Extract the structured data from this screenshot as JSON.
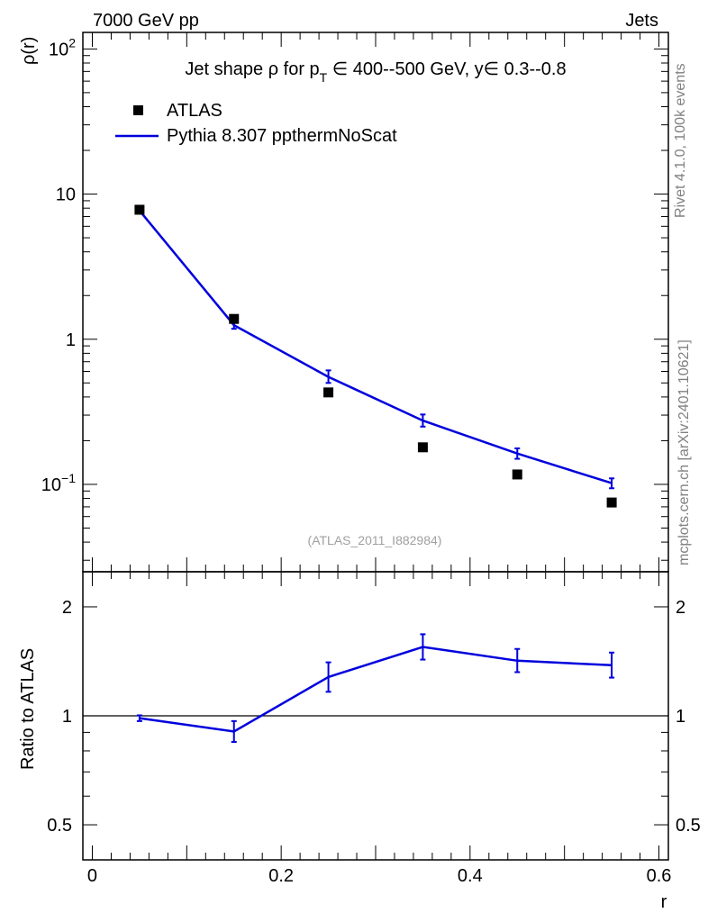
{
  "header": {
    "left": "7000 GeV pp",
    "right": "Jets"
  },
  "side": {
    "rivet": "Rivet 4.1.0,  100k events",
    "mcplots": "mcplots.cern.ch [arXiv:2401.10621]"
  },
  "colors": {
    "mc": "#0000dd",
    "data": "#000000",
    "watermark": "#a0a0a0"
  },
  "chart_data": [
    {
      "type": "scatter",
      "panel": "main",
      "title": {
        "pre": "Jet shape ",
        "rho": "ρ",
        "mid": " for p",
        "sub": "T",
        "post": " ∈ 400--500 GeV, y∈ 0.3--0.8"
      },
      "ylabel": "ρ(r)",
      "yscale": "log",
      "ylim": [
        0.025,
        130
      ],
      "xlim": [
        -0.01,
        0.61
      ],
      "ytick_labels": [
        {
          "value": 100,
          "base": "10",
          "exp": "2"
        },
        {
          "value": 10,
          "base": "10",
          "exp": ""
        },
        {
          "value": 1,
          "base": "1",
          "exp": ""
        },
        {
          "value": 0.1,
          "base": "10",
          "exp": "−1"
        }
      ],
      "watermark": "(ATLAS_2011_I882984)",
      "legend": {
        "position": "top-left",
        "entries": [
          {
            "name": "ATLAS",
            "marker": "square"
          },
          {
            "name": "Pythia 8.307 ppthermNoScat",
            "marker": "line"
          }
        ]
      },
      "series": [
        {
          "name": "ATLAS",
          "x": [
            0.05,
            0.15,
            0.25,
            0.35,
            0.45,
            0.55
          ],
          "y": [
            7.8,
            1.38,
            0.43,
            0.18,
            0.117,
            0.075
          ]
        },
        {
          "name": "Pythia 8.307 ppthermNoScat",
          "x": [
            0.05,
            0.15,
            0.25,
            0.35,
            0.45,
            0.55
          ],
          "y": [
            7.7,
            1.25,
            0.55,
            0.275,
            0.163,
            0.102
          ],
          "yerr_lo": [
            0.1,
            0.07,
            0.05,
            0.025,
            0.013,
            0.008
          ],
          "yerr_hi": [
            0.1,
            0.07,
            0.06,
            0.028,
            0.014,
            0.008
          ]
        }
      ]
    },
    {
      "type": "line",
      "panel": "ratio",
      "ylabel": "Ratio to ATLAS",
      "xlabel": "r",
      "yscale": "log",
      "ylim": [
        0.4,
        2.5
      ],
      "xlim": [
        -0.01,
        0.61
      ],
      "xticks": [
        0,
        0.2,
        0.4,
        0.6
      ],
      "xtick_labels": [
        "0",
        "0.2",
        "0.4",
        "0.6"
      ],
      "yticks": [
        0.5,
        1,
        2
      ],
      "ytick_labels": [
        "0.5",
        "1",
        "2"
      ],
      "reference": 1,
      "series": [
        {
          "name": "Pythia 8.307 ppthermNoScat",
          "x": [
            0.05,
            0.15,
            0.25,
            0.35,
            0.45,
            0.55
          ],
          "y": [
            0.985,
            0.905,
            1.28,
            1.55,
            1.42,
            1.38
          ],
          "yerr_lo": [
            0.018,
            0.058,
            0.115,
            0.12,
            0.1,
            0.105
          ],
          "yerr_hi": [
            0.018,
            0.062,
            0.125,
            0.13,
            0.11,
            0.115
          ]
        }
      ]
    }
  ]
}
